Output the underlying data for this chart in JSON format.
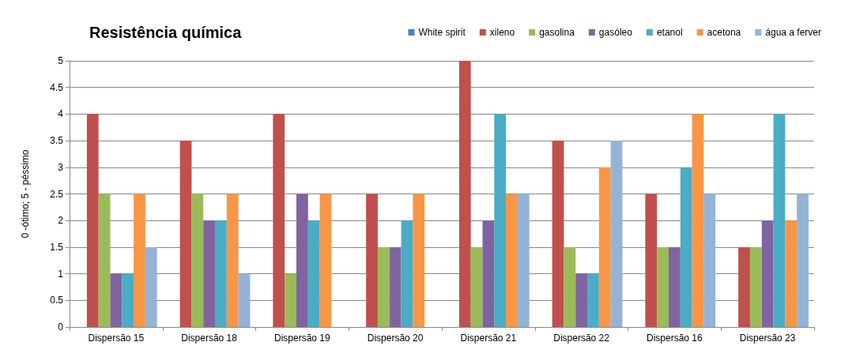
{
  "chart_data": {
    "type": "bar",
    "title": "Resistência química",
    "ylabel": "0 -ótimo; 5 - péssimo",
    "categories": [
      "Dispersão 15",
      "Dispersão 18",
      "Dispersão 19",
      "Dispersão 20",
      "Dispersão 21",
      "Dispersão 22",
      "Dispersão 16",
      "Dispersão 23"
    ],
    "series": [
      {
        "name": "White spirit",
        "color": "#4f81bd",
        "values": [
          0,
          0,
          0,
          0,
          0,
          0,
          0,
          0
        ]
      },
      {
        "name": "xileno",
        "color": "#c0504d",
        "values": [
          4,
          3.5,
          4,
          2.5,
          5,
          3.5,
          2.5,
          1.5
        ]
      },
      {
        "name": "gasolina",
        "color": "#9bbb59",
        "values": [
          2.5,
          2.5,
          1,
          1.5,
          1.5,
          1.5,
          1.5,
          1.5
        ]
      },
      {
        "name": "gasóleo",
        "color": "#8064a2",
        "values": [
          1,
          2,
          2.5,
          1.5,
          2,
          1,
          1.5,
          2
        ]
      },
      {
        "name": "etanol",
        "color": "#4bacc6",
        "values": [
          1,
          2,
          2,
          2,
          4,
          1,
          3,
          4
        ]
      },
      {
        "name": "acetona",
        "color": "#f79646",
        "values": [
          2.5,
          2.5,
          2.5,
          2.5,
          2.5,
          3,
          4,
          2
        ]
      },
      {
        "name": "água a ferver",
        "color": "#95b3d7",
        "values": [
          1.5,
          1,
          0,
          0,
          2.5,
          3.5,
          2.5,
          2.5
        ]
      }
    ],
    "ylim": [
      0,
      5
    ],
    "yticks": [
      0,
      0.5,
      1,
      1.5,
      2,
      2.5,
      3,
      3.5,
      4,
      4.5,
      5
    ],
    "grid": "y",
    "legend": "top right"
  }
}
